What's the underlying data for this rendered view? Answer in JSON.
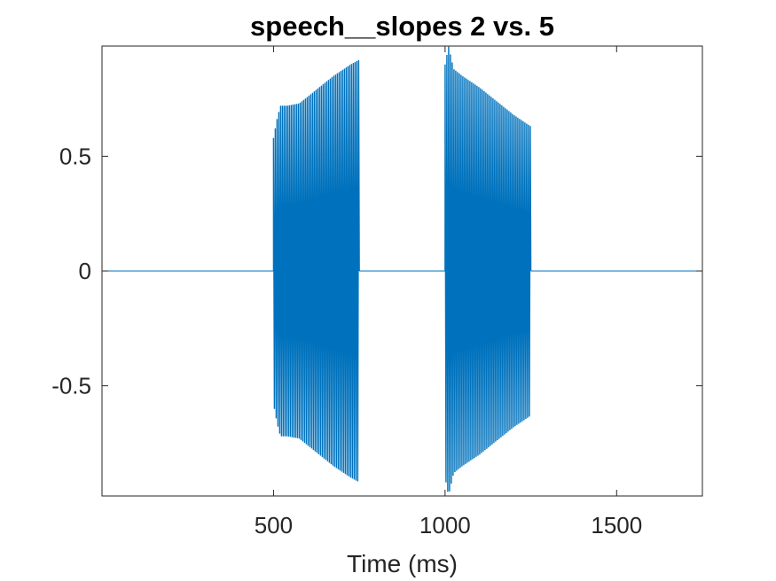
{
  "chart_data": {
    "type": "line",
    "title": "speech__slopes 2 vs. 5",
    "xlabel": "Time (ms)",
    "ylabel": "",
    "xlim": [
      0,
      1750
    ],
    "ylim": [
      -0.98,
      0.98
    ],
    "xticks": [
      500,
      1000,
      1500
    ],
    "yticks": [
      -0.5,
      0,
      0.5
    ],
    "xtick_labels": [
      "500",
      "1000",
      "1500"
    ],
    "ytick_labels": [
      "-0.5",
      "0",
      "0.5"
    ],
    "grid": false,
    "legend": "none",
    "line_color": "#0072BD",
    "series": [
      {
        "segments": [
          {
            "x_start": 0,
            "x_end": 500,
            "envelope": [
              [
                0,
                0
              ],
              [
                500,
                0
              ]
            ]
          },
          {
            "x_start": 500,
            "x_end": 750,
            "envelope": [
              [
                500,
                0.58
              ],
              [
                510,
                0.66
              ],
              [
                520,
                0.72
              ],
              [
                540,
                0.72
              ],
              [
                575,
                0.73
              ],
              [
                625,
                0.79
              ],
              [
                675,
                0.85
              ],
              [
                725,
                0.9
              ],
              [
                750,
                0.92
              ]
            ]
          },
          {
            "x_start": 750,
            "x_end": 1000,
            "envelope": [
              [
                750,
                0
              ],
              [
                1000,
                0
              ]
            ]
          },
          {
            "x_start": 1000,
            "x_end": 1250,
            "envelope": [
              [
                1000,
                0.9
              ],
              [
                1010,
                0.98
              ],
              [
                1025,
                0.88
              ],
              [
                1050,
                0.85
              ],
              [
                1100,
                0.8
              ],
              [
                1150,
                0.74
              ],
              [
                1200,
                0.68
              ],
              [
                1250,
                0.63
              ]
            ]
          },
          {
            "x_start": 1250,
            "x_end": 1750,
            "envelope": [
              [
                1250,
                0
              ],
              [
                1750,
                0
              ]
            ]
          }
        ]
      }
    ]
  }
}
